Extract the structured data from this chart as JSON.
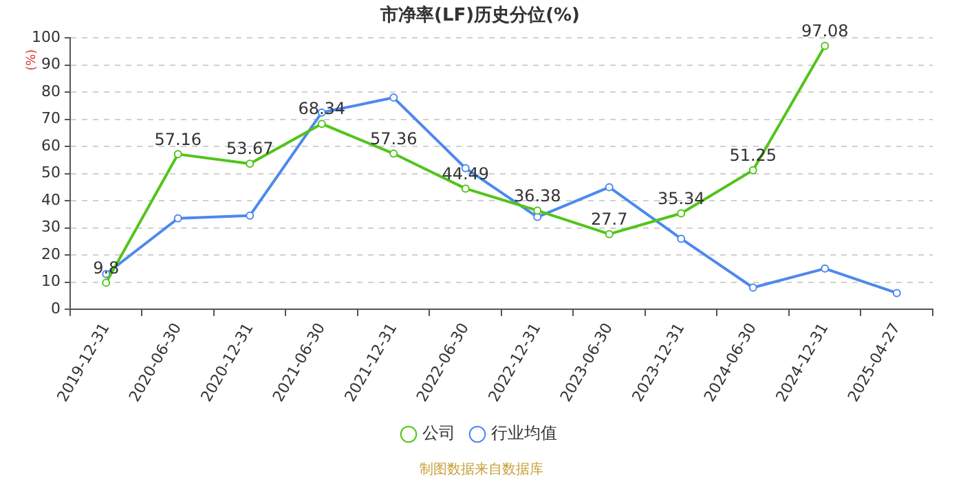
{
  "chart_data": {
    "type": "line",
    "title": "市净率(LF)历史分位(%)",
    "ylabel": "(%)",
    "categories": [
      "2019-12-31",
      "2020-06-30",
      "2020-12-31",
      "2021-06-30",
      "2021-12-31",
      "2022-06-30",
      "2022-12-31",
      "2023-06-30",
      "2023-12-31",
      "2024-06-30",
      "2024-12-31",
      "2025-04-27"
    ],
    "series": [
      {
        "name": "公司",
        "color": "#52c41a",
        "values": [
          9.8,
          57.16,
          53.67,
          68.34,
          57.36,
          44.49,
          36.38,
          27.7,
          35.34,
          51.25,
          97.08,
          null
        ],
        "value_labels": [
          "9.8",
          "57.16",
          "53.67",
          "68.34",
          "57.36",
          "44.49",
          "36.38",
          "27.7",
          "35.34",
          "51.25",
          "97.08",
          null
        ]
      },
      {
        "name": "行业均值",
        "color": "#4e88ee",
        "values": [
          13,
          33.5,
          34.5,
          72.5,
          78,
          52,
          34,
          45,
          26,
          8,
          15,
          6
        ]
      }
    ],
    "ylim": [
      0,
      100
    ],
    "yticks": [
      0,
      10,
      20,
      30,
      40,
      50,
      60,
      70,
      80,
      90,
      100
    ],
    "grid": "y",
    "legend": "bottom",
    "marker": "circle",
    "line_style": "solid",
    "annotations": [
      "制图数据来自数据库"
    ]
  }
}
